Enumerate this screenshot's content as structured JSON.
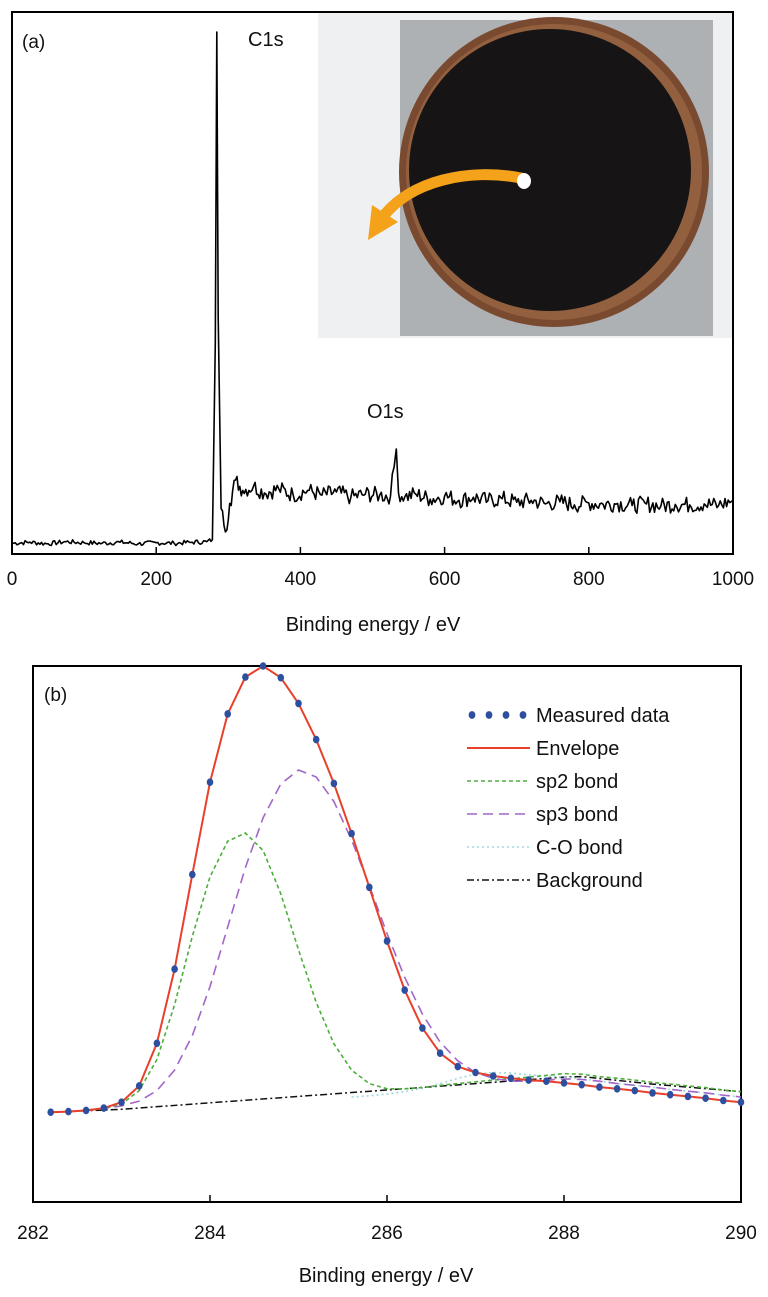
{
  "chart_data": [
    {
      "panel_label": "(a)",
      "type": "line",
      "xlabel": "Binding energy / eV",
      "ylabel": "",
      "xlim": [
        0,
        1000
      ],
      "ylim": [
        0,
        100
      ],
      "x_ticks": [
        0,
        200,
        400,
        600,
        800,
        1000
      ],
      "y_ticks_labeled": false,
      "grid": false,
      "inset": "photograph of a dark circular coated disk on a copper holder, white spot marking the measured point, orange curved arrow pointing from it",
      "annotations": [
        {
          "text": "C1s",
          "x": 284,
          "y": 100
        },
        {
          "text": "O1s",
          "x": 532,
          "y": 23
        }
      ],
      "series": [
        {
          "color": "#000000",
          "x": [
            0,
            25,
            50,
            75,
            100,
            125,
            150,
            175,
            200,
            225,
            250,
            270,
            278,
            282,
            284,
            286,
            290,
            296,
            302,
            310,
            320,
            335,
            350,
            370,
            390,
            410,
            430,
            450,
            470,
            490,
            510,
            525,
            530,
            533,
            536,
            545,
            560,
            580,
            600,
            620,
            640,
            660,
            680,
            700,
            720,
            740,
            760,
            780,
            800,
            820,
            840,
            860,
            880,
            900,
            920,
            940,
            960,
            980,
            1000
          ],
          "y": [
            1.3,
            1.5,
            1.2,
            1.6,
            1.4,
            1.3,
            1.5,
            1.2,
            1.4,
            1.3,
            1.5,
            1.6,
            2.0,
            40,
            100,
            45,
            8,
            3.5,
            9,
            13.5,
            11.5,
            12.3,
            11.0,
            11.8,
            10.6,
            11.5,
            10.6,
            11.2,
            10.2,
            10.8,
            10.6,
            10.4,
            16,
            19.5,
            11.0,
            10.3,
            10.8,
            9.8,
            10.4,
            9.6,
            10.2,
            9.5,
            9.9,
            9.2,
            9.6,
            8.9,
            9.3,
            8.7,
            9.1,
            8.8,
            9.0,
            8.6,
            8.9,
            8.5,
            8.8,
            8.7,
            8.9,
            8.6,
            9.6
          ]
        }
      ]
    },
    {
      "panel_label": "(b)",
      "type": "line",
      "xlabel": "Binding energy / eV",
      "ylabel": "",
      "xlim": [
        282,
        290
      ],
      "ylim": [
        0,
        100
      ],
      "x_ticks": [
        282,
        284,
        286,
        288,
        290
      ],
      "y_ticks_labeled": false,
      "grid": false,
      "legend_position": "top-right",
      "series": [
        {
          "name": "Measured data",
          "style": "dotted-markers",
          "color": "#2d4fa0",
          "x": [
            282.2,
            282.4,
            282.6,
            282.8,
            283.0,
            283.2,
            283.4,
            283.6,
            283.8,
            284.0,
            284.2,
            284.4,
            284.6,
            284.8,
            285.0,
            285.2,
            285.4,
            285.6,
            285.8,
            286.0,
            286.2,
            286.4,
            286.6,
            286.8,
            287.0,
            287.2,
            287.4,
            287.6,
            287.8,
            288.0,
            288.2,
            288.4,
            288.6,
            288.8,
            289.0,
            289.2,
            289.4,
            289.6,
            289.8,
            290.0
          ],
          "y": [
            11.1,
            11.2,
            11.4,
            11.8,
            12.8,
            15.6,
            22.9,
            35.6,
            51.8,
            67.6,
            79.3,
            85.6,
            87.5,
            85.5,
            81.1,
            74.9,
            67.4,
            58.8,
            49.6,
            40.4,
            32.0,
            25.5,
            21.2,
            18.9,
            17.9,
            17.3,
            16.9,
            16.6,
            16.4,
            16.1,
            15.8,
            15.4,
            15.1,
            14.8,
            14.4,
            14.1,
            13.8,
            13.5,
            13.1,
            12.8
          ]
        },
        {
          "name": "Envelope",
          "style": "solid",
          "color": "#e8402a",
          "x": [
            282.2,
            282.4,
            282.6,
            282.8,
            283.0,
            283.2,
            283.4,
            283.6,
            283.8,
            284.0,
            284.2,
            284.4,
            284.6,
            284.8,
            285.0,
            285.2,
            285.4,
            285.6,
            285.8,
            286.0,
            286.2,
            286.4,
            286.6,
            286.8,
            287.0,
            287.2,
            287.4,
            287.6,
            287.8,
            288.0,
            288.2,
            288.4,
            288.6,
            288.8,
            289.0,
            289.2,
            289.4,
            289.6,
            289.8,
            290.0
          ],
          "y": [
            11.1,
            11.2,
            11.4,
            11.8,
            12.8,
            15.6,
            22.9,
            35.6,
            51.8,
            67.6,
            79.3,
            85.6,
            87.5,
            85.5,
            81.1,
            74.9,
            67.4,
            58.8,
            49.6,
            40.4,
            32.0,
            25.5,
            21.2,
            18.9,
            17.9,
            17.3,
            16.9,
            16.6,
            16.4,
            16.1,
            15.8,
            15.4,
            15.1,
            14.8,
            14.4,
            14.1,
            13.8,
            13.5,
            13.1,
            12.8
          ]
        },
        {
          "name": "sp2 bond",
          "style": "short-dash",
          "color": "#4caf3a",
          "x": [
            282.2,
            282.4,
            282.6,
            282.8,
            283.0,
            283.2,
            283.4,
            283.6,
            283.8,
            284.0,
            284.2,
            284.4,
            284.6,
            284.8,
            285.0,
            285.2,
            285.4,
            285.6,
            285.8,
            286.0,
            286.2,
            286.4,
            286.6,
            286.8,
            287.0,
            287.2,
            287.4,
            287.6,
            287.8,
            288.0,
            288.2,
            288.4,
            288.6,
            288.8,
            289.0,
            289.2,
            289.4,
            289.6,
            289.8,
            290.0
          ],
          "y": [
            11.1,
            11.2,
            11.4,
            11.7,
            12.5,
            14.8,
            20.1,
            29.5,
            41.2,
            51.4,
            57.5,
            58.9,
            55.9,
            48.5,
            38.9,
            29.9,
            22.8,
            18.3,
            16.0,
            15.1,
            15.1,
            15.3,
            15.7,
            16.0,
            16.3,
            16.6,
            16.8,
            17.1,
            17.4,
            17.7,
            17.6,
            17.2,
            16.9,
            16.6,
            16.2,
            15.9,
            15.6,
            15.3,
            14.9,
            14.6
          ]
        },
        {
          "name": "sp3 bond",
          "style": "long-dash",
          "color": "#a267c8",
          "x": [
            282.2,
            282.4,
            282.6,
            282.8,
            283.0,
            283.2,
            283.4,
            283.6,
            283.8,
            284.0,
            284.2,
            284.4,
            284.6,
            284.8,
            285.0,
            285.2,
            285.4,
            285.6,
            285.8,
            286.0,
            286.2,
            286.4,
            286.6,
            286.8,
            287.0,
            287.2,
            287.4,
            287.6,
            287.8,
            288.0,
            288.2,
            288.4,
            288.6,
            288.8,
            289.0,
            289.2,
            289.4,
            289.6,
            289.8,
            290.0
          ],
          "y": [
            11.1,
            11.2,
            11.4,
            11.7,
            12.2,
            13.0,
            14.8,
            18.3,
            24.2,
            32.6,
            42.8,
            53.0,
            61.5,
            67.3,
            69.7,
            68.5,
            64.3,
            57.7,
            49.9,
            41.7,
            34.2,
            27.9,
            23.1,
            19.9,
            17.9,
            16.9,
            16.4,
            16.4,
            16.6,
            16.8,
            16.7,
            16.4,
            16.0,
            15.7,
            15.4,
            15.0,
            14.7,
            14.4,
            14.0,
            13.7
          ]
        },
        {
          "name": "C-O bond",
          "style": "dotted",
          "color": "#9fd9df",
          "x": [
            285.6,
            285.8,
            286.0,
            286.2,
            286.4,
            286.6,
            286.8,
            287.0,
            287.2,
            287.4,
            287.6,
            287.8,
            288.0,
            288.2,
            288.4,
            288.6,
            288.8,
            289.0,
            289.2,
            289.4,
            289.6,
            289.8,
            290.0
          ],
          "y": [
            13.7,
            13.9,
            14.2,
            14.6,
            15.2,
            16.0,
            16.9,
            17.6,
            17.9,
            17.8,
            17.5,
            17.3,
            17.1,
            16.8,
            16.4,
            16.0,
            15.7,
            15.4,
            15.0,
            14.7,
            14.4,
            14.0,
            13.7
          ]
        },
        {
          "name": "Background",
          "style": "dash-dot",
          "color": "#111111",
          "x": [
            282.2,
            283.0,
            284.0,
            285.0,
            286.0,
            287.0,
            288.0,
            288.2,
            289.0,
            290.0
          ],
          "y": [
            11.1,
            11.6,
            12.7,
            13.8,
            14.9,
            16.0,
            17.1,
            17.2,
            15.9,
            14.6
          ]
        }
      ]
    }
  ]
}
